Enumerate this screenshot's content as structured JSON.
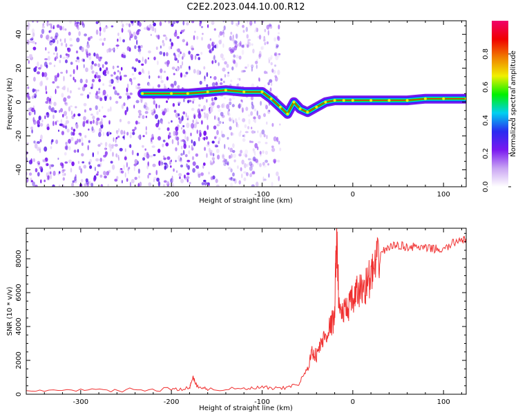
{
  "title": "C2E2.2023.044.10.00.R12",
  "chart_data": [
    {
      "type": "heatmap",
      "xlabel": "Height of straight line (km)",
      "ylabel": "Frequency (Hz)",
      "xlim": [
        -360,
        125
      ],
      "ylim": [
        -50,
        48
      ],
      "x_ticks": [
        -300,
        -200,
        -100,
        0,
        100
      ],
      "y_ticks": [
        -40,
        -20,
        0,
        20,
        40
      ],
      "x_tick_labels": [
        "-300",
        "-200",
        "-100",
        "0",
        "100"
      ],
      "y_tick_labels": [
        "-40",
        "-20",
        "0",
        "20",
        "40"
      ],
      "noise_region_x": [
        -360,
        -80
      ],
      "signal_trace": [
        {
          "x": -232,
          "y": 5
        },
        {
          "x": -200,
          "y": 5
        },
        {
          "x": -182,
          "y": 5
        },
        {
          "x": -160,
          "y": 6
        },
        {
          "x": -140,
          "y": 7
        },
        {
          "x": -120,
          "y": 6
        },
        {
          "x": -100,
          "y": 6
        },
        {
          "x": -90,
          "y": 2
        },
        {
          "x": -80,
          "y": -3
        },
        {
          "x": -72,
          "y": -7
        },
        {
          "x": -65,
          "y": 0
        },
        {
          "x": -58,
          "y": -4
        },
        {
          "x": -50,
          "y": -6
        },
        {
          "x": -40,
          "y": -3
        },
        {
          "x": -30,
          "y": 0
        },
        {
          "x": -20,
          "y": 1
        },
        {
          "x": -10,
          "y": 1
        },
        {
          "x": 0,
          "y": 1
        },
        {
          "x": 20,
          "y": 1
        },
        {
          "x": 40,
          "y": 1
        },
        {
          "x": 60,
          "y": 1
        },
        {
          "x": 80,
          "y": 2
        },
        {
          "x": 100,
          "y": 2
        },
        {
          "x": 125,
          "y": 2
        }
      ],
      "colorbar": {
        "label": "Normalized spectral amplitude",
        "ticks": [
          0.0,
          0.2,
          0.4,
          0.6,
          0.8
        ],
        "tick_labels": [
          "0.0",
          "0.2",
          "0.4",
          "0.6",
          "0.8"
        ],
        "range": [
          0,
          1
        ],
        "colors": [
          "#ffffff",
          "#c9a5f3",
          "#7a18f0",
          "#2a2af0",
          "#00d0f0",
          "#00f000",
          "#f0f000",
          "#f08000",
          "#f00000",
          "#f0006a"
        ]
      }
    },
    {
      "type": "line",
      "xlabel": "Height of straight line (km)",
      "ylabel": "SNR (10 * v/v)",
      "xlim": [
        -360,
        125
      ],
      "ylim": [
        0,
        9800
      ],
      "x_ticks": [
        -300,
        -200,
        -100,
        0,
        100
      ],
      "y_ticks": [
        0,
        2000,
        4000,
        6000,
        8000
      ],
      "x_tick_labels": [
        "-300",
        "-200",
        "-100",
        "0",
        "100"
      ],
      "y_tick_labels": [
        "0",
        "2000",
        "4000",
        "6000",
        "8000"
      ],
      "color": "#f03030",
      "x": [
        -360,
        -300,
        -250,
        -200,
        -180,
        -176,
        -172,
        -160,
        -120,
        -100,
        -80,
        -60,
        -50,
        -45,
        -40,
        -35,
        -30,
        -25,
        -20,
        -18,
        -15,
        -10,
        -5,
        0,
        5,
        10,
        15,
        20,
        25,
        30,
        40,
        50,
        60,
        70,
        80,
        90,
        100,
        110,
        120,
        125
      ],
      "y": [
        250,
        200,
        250,
        300,
        350,
        1000,
        500,
        300,
        300,
        400,
        300,
        600,
        1500,
        2500,
        2300,
        3000,
        3500,
        4000,
        4500,
        9700,
        5000,
        4800,
        5200,
        5500,
        6000,
        6200,
        6500,
        7000,
        7500,
        8300,
        8700,
        8800,
        8700,
        8700,
        8600,
        8600,
        8500,
        8900,
        9200,
        9000
      ]
    }
  ]
}
